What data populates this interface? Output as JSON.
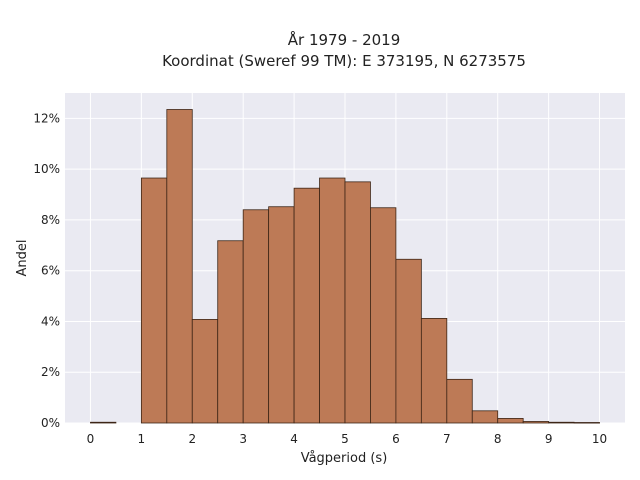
{
  "chart_data": {
    "type": "bar",
    "title": "År 1979 - 2019",
    "subtitle": "Koordinat (Sweref 99 TM): E 373195, N 6273575",
    "xlabel": "Vågperiod (s)",
    "ylabel": "Andel",
    "xlim": [
      -0.5,
      10.5
    ],
    "ylim": [
      0,
      0.13
    ],
    "x_ticks": [
      0,
      1,
      2,
      3,
      4,
      5,
      6,
      7,
      8,
      9,
      10
    ],
    "y_ticks": [
      0,
      0.02,
      0.04,
      0.06,
      0.08,
      0.1,
      0.12
    ],
    "y_tick_labels": [
      "0%",
      "2%",
      "4%",
      "6%",
      "8%",
      "10%",
      "12%"
    ],
    "bin_width": 0.5,
    "bins": [
      {
        "x": 0.0,
        "value": 0.0003
      },
      {
        "x": 0.5,
        "value": 0.0
      },
      {
        "x": 1.0,
        "value": 0.0965
      },
      {
        "x": 1.5,
        "value": 0.1235
      },
      {
        "x": 2.0,
        "value": 0.0408
      },
      {
        "x": 2.5,
        "value": 0.0718
      },
      {
        "x": 3.0,
        "value": 0.084
      },
      {
        "x": 3.5,
        "value": 0.0852
      },
      {
        "x": 4.0,
        "value": 0.0925
      },
      {
        "x": 4.5,
        "value": 0.0965
      },
      {
        "x": 5.0,
        "value": 0.095
      },
      {
        "x": 5.5,
        "value": 0.0848
      },
      {
        "x": 6.0,
        "value": 0.0645
      },
      {
        "x": 6.5,
        "value": 0.0412
      },
      {
        "x": 7.0,
        "value": 0.0172
      },
      {
        "x": 7.5,
        "value": 0.0048
      },
      {
        "x": 8.0,
        "value": 0.0018
      },
      {
        "x": 8.5,
        "value": 0.0006
      },
      {
        "x": 9.0,
        "value": 0.0003
      },
      {
        "x": 9.5,
        "value": 0.0002
      }
    ],
    "grid": true,
    "colors": {
      "bar": "#bd7a56",
      "bar_edge": "#3d2516",
      "plot_background": "#eaeaf2",
      "grid": "#ffffff"
    }
  }
}
